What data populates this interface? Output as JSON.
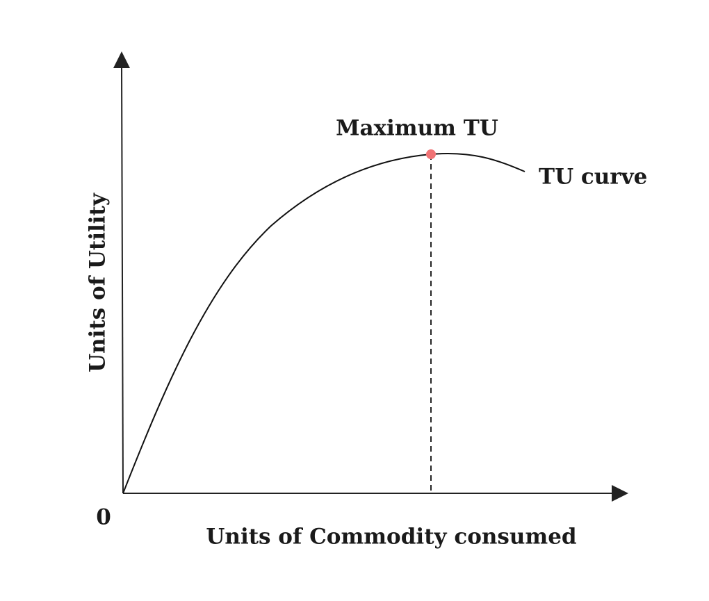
{
  "diagram": {
    "peak_label": "Maximum TU",
    "curve_label": "TU curve",
    "y_axis_label": "Units of Utility",
    "x_axis_label": "Units of Commodity consumed",
    "origin_label": "0"
  }
}
